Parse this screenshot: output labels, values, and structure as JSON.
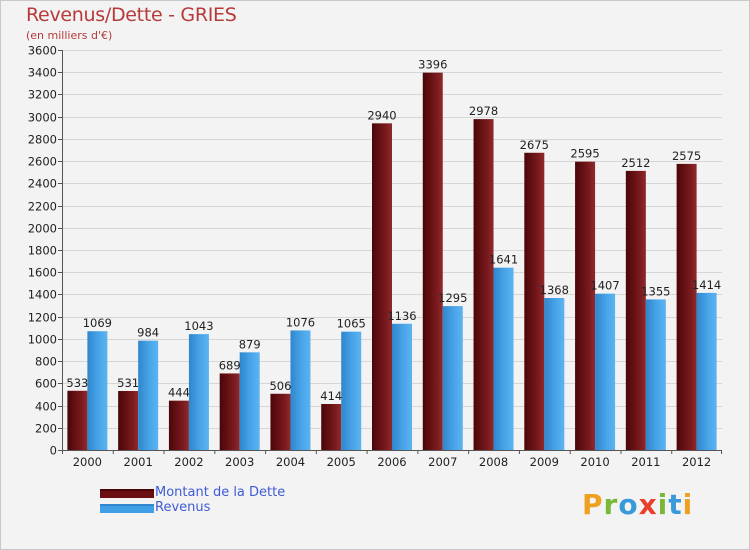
{
  "header": {
    "title": "Revenus/Dette - GRIES",
    "subtitle": "(en milliers d'€)"
  },
  "legend": {
    "items": [
      {
        "label": "Montant de la Dette",
        "color": "#6b0f12"
      },
      {
        "label": "Revenus",
        "color": "#3f9ee6"
      }
    ]
  },
  "logo": {
    "text": "Proxiti",
    "letters": [
      {
        "ch": "P",
        "color": "#f0a020"
      },
      {
        "ch": "r",
        "color": "#7ab83a"
      },
      {
        "ch": "o",
        "color": "#3a9ad9"
      },
      {
        "ch": "x",
        "color": "#e8402a"
      },
      {
        "ch": "i",
        "color": "#7ab83a"
      },
      {
        "ch": "t",
        "color": "#3a9ad9"
      },
      {
        "ch": "i",
        "color": "#f0a020"
      }
    ]
  },
  "chart_data": {
    "type": "bar",
    "title": "Revenus/Dette - GRIES",
    "subtitle": "(en milliers d'€)",
    "xlabel": "",
    "ylabel": "",
    "ylim": [
      0,
      3600
    ],
    "ytick_step": 200,
    "grid": true,
    "categories": [
      "2000",
      "2001",
      "2002",
      "2003",
      "2004",
      "2005",
      "2006",
      "2007",
      "2008",
      "2009",
      "2010",
      "2011",
      "2012"
    ],
    "series": [
      {
        "name": "Montant de la Dette",
        "color": "#6b0f12",
        "values": [
          533,
          531,
          444,
          689,
          506,
          414,
          2940,
          3396,
          2978,
          2675,
          2595,
          2512,
          2575
        ]
      },
      {
        "name": "Revenus",
        "color": "#3f9ee6",
        "values": [
          1069,
          984,
          1043,
          879,
          1076,
          1065,
          1136,
          1295,
          1641,
          1368,
          1407,
          1355,
          1414
        ]
      }
    ]
  }
}
